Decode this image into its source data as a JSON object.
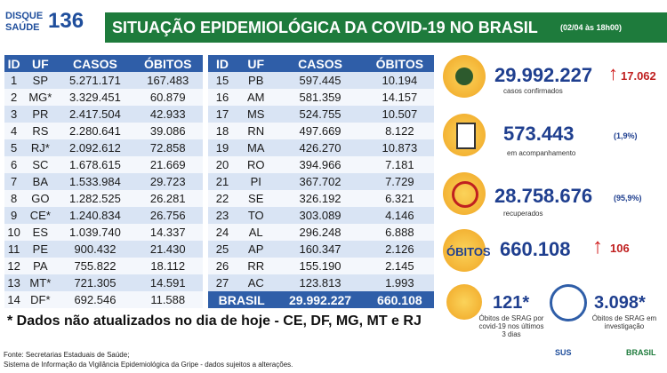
{
  "logo": {
    "line1": "DISQUE",
    "line2": "SAÚDE",
    "number": "136"
  },
  "header": {
    "title": "SITUAÇÃO EPIDEMIOLÓGICA DA COVID-19 NO BRASIL",
    "date": "(02/04 às 18h00)"
  },
  "table": {
    "columns": [
      "ID",
      "UF",
      "CASOS",
      "ÓBITOS"
    ],
    "left_rows": [
      [
        "1",
        "SP",
        "5.271.171",
        "167.483"
      ],
      [
        "2",
        "MG*",
        "3.329.451",
        "60.879"
      ],
      [
        "3",
        "PR",
        "2.417.504",
        "42.933"
      ],
      [
        "4",
        "RS",
        "2.280.641",
        "39.086"
      ],
      [
        "5",
        "RJ*",
        "2.092.612",
        "72.858"
      ],
      [
        "6",
        "SC",
        "1.678.615",
        "21.669"
      ],
      [
        "7",
        "BA",
        "1.533.984",
        "29.723"
      ],
      [
        "8",
        "GO",
        "1.282.525",
        "26.281"
      ],
      [
        "9",
        "CE*",
        "1.240.834",
        "26.756"
      ],
      [
        "10",
        "ES",
        "1.039.740",
        "14.337"
      ],
      [
        "11",
        "PE",
        "900.432",
        "21.430"
      ],
      [
        "12",
        "PA",
        "755.822",
        "18.112"
      ],
      [
        "13",
        "MT*",
        "721.305",
        "14.591"
      ],
      [
        "14",
        "DF*",
        "692.546",
        "11.588"
      ]
    ],
    "right_rows": [
      [
        "15",
        "PB",
        "597.445",
        "10.194"
      ],
      [
        "16",
        "AM",
        "581.359",
        "14.157"
      ],
      [
        "17",
        "MS",
        "524.755",
        "10.507"
      ],
      [
        "18",
        "RN",
        "497.669",
        "8.122"
      ],
      [
        "19",
        "MA",
        "426.270",
        "10.873"
      ],
      [
        "20",
        "RO",
        "394.966",
        "7.181"
      ],
      [
        "21",
        "PI",
        "367.702",
        "7.729"
      ],
      [
        "22",
        "SE",
        "326.192",
        "6.321"
      ],
      [
        "23",
        "TO",
        "303.089",
        "4.146"
      ],
      [
        "24",
        "AL",
        "296.248",
        "6.888"
      ],
      [
        "25",
        "AP",
        "160.347",
        "2.126"
      ],
      [
        "26",
        "RR",
        "155.190",
        "2.145"
      ],
      [
        "27",
        "AC",
        "123.813",
        "1.993"
      ]
    ],
    "total": [
      "BRASIL",
      "29.992.227",
      "660.108"
    ]
  },
  "stats": {
    "confirmed": {
      "value": "29.992.227",
      "new": "17.062",
      "label": "casos confirmados"
    },
    "monitoring": {
      "value": "573.443",
      "pct": "(1,9%)",
      "label": "em acompanhamento"
    },
    "recovered": {
      "value": "28.758.676",
      "pct": "(95,9%)",
      "label": "recuperados"
    },
    "deaths": {
      "label": "ÓBITOS",
      "value": "660.108",
      "new": "106"
    },
    "srag_recent": {
      "value": "121*",
      "label": "Óbitos de SRAG por covid-19 nos últimos 3 dias"
    },
    "srag_investigation": {
      "value": "3.098*",
      "label": "Óbitos de SRAG em investigação"
    }
  },
  "footnote": "* Dados não atualizados no dia de hoje - CE, DF, MG, MT e RJ",
  "source": {
    "line1": "Fonte: Secretarias Estaduais de Saúde;",
    "line2": "Sistema de Informação da Vigilância Epidemiológica da Gripe - dados sujeitos a alterações."
  },
  "footer_logos": {
    "sus": "SUS",
    "brasil": "BRASIL"
  }
}
